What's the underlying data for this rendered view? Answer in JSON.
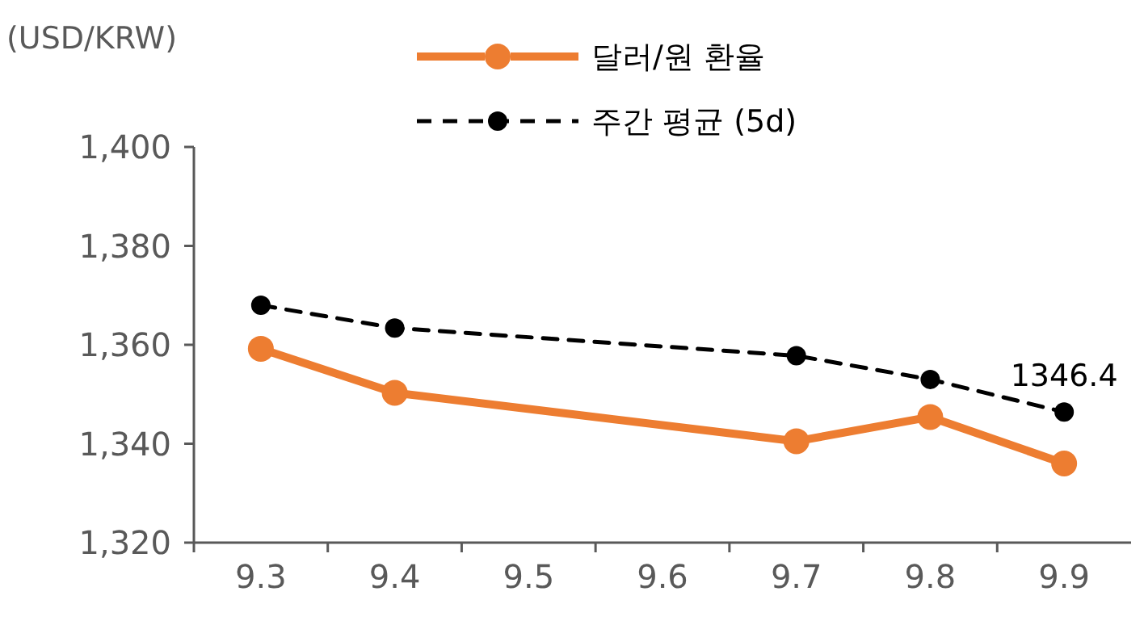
{
  "chart_data": {
    "type": "line",
    "ylabel": "(USD/KRW)",
    "categories": [
      "9.3",
      "9.4",
      "9.5",
      "9.6",
      "9.7",
      "9.8",
      "9.9"
    ],
    "series": [
      {
        "name": "달러/원 환율",
        "color": "#ed7d31",
        "values": [
          1359.2,
          1350.3,
          null,
          null,
          1340.5,
          1345.4,
          1336
        ],
        "line_style": "solid"
      },
      {
        "name": "주간 평균 (5d)",
        "color": "#000000",
        "values": [
          1368,
          1363.4,
          null,
          null,
          1357.8,
          1353,
          1346.4
        ],
        "line_style": "dashed",
        "value_labels": [
          null,
          null,
          null,
          null,
          null,
          null,
          "1346.4"
        ]
      }
    ],
    "ylim": [
      1320,
      1400
    ],
    "yticks": [
      {
        "value": 1320,
        "label": "1,320"
      },
      {
        "value": 1340,
        "label": "1,340"
      },
      {
        "value": 1360,
        "label": "1,360"
      },
      {
        "value": 1380,
        "label": "1,380"
      },
      {
        "value": 1400,
        "label": "1,400"
      }
    ],
    "grid": false,
    "legend": "top",
    "marker": "circle"
  }
}
